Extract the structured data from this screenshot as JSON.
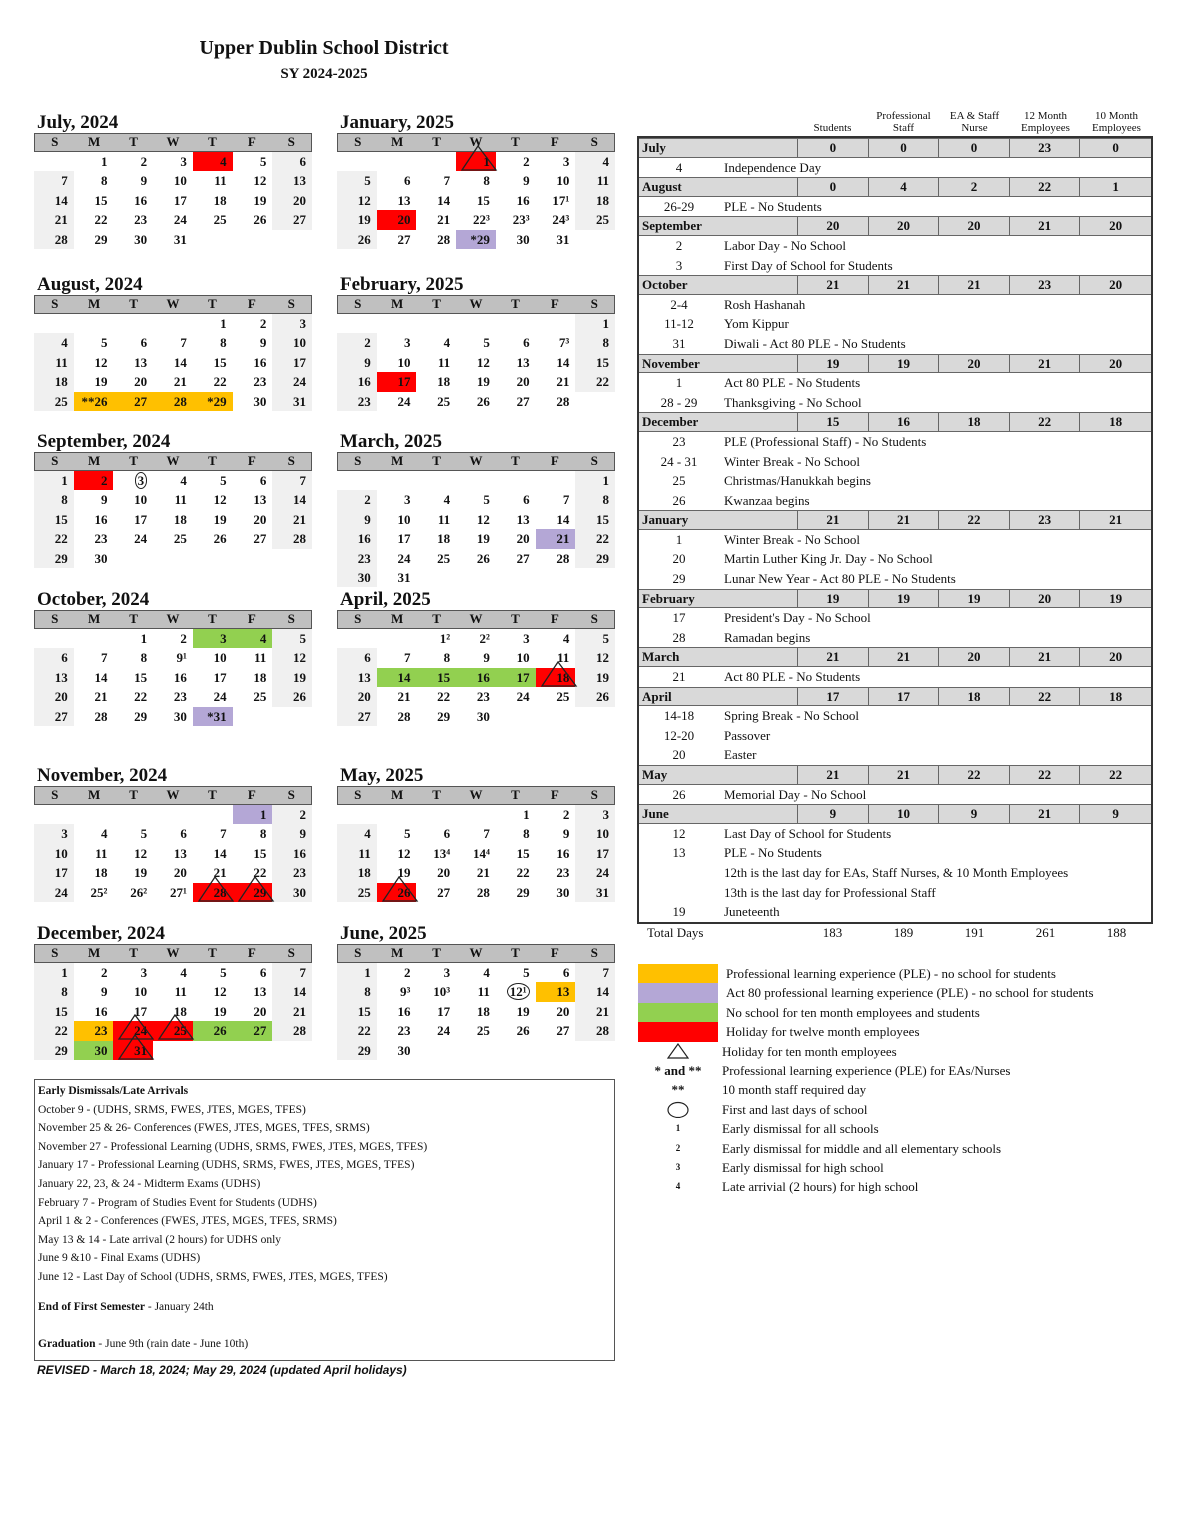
{
  "header": {
    "title": "Upper Dublin School District",
    "subtitle": "SY 2024-2025"
  },
  "dow": [
    "S",
    "M",
    "T",
    "W",
    "T",
    "F",
    "S"
  ],
  "colors": {
    "yellow": "#ffc000",
    "purple": "#b4a7d6",
    "green": "#92d050",
    "red": "#ff0000"
  },
  "months": [
    {
      "title": "July, 2024",
      "weeks": [
        [
          "",
          "1",
          "2",
          "3",
          "4",
          "5",
          "6"
        ],
        [
          "7",
          "8",
          "9",
          "10",
          "11",
          "12",
          "13"
        ],
        [
          "14",
          "15",
          "16",
          "17",
          "18",
          "19",
          "20"
        ],
        [
          "21",
          "22",
          "23",
          "24",
          "25",
          "26",
          "27"
        ],
        [
          "28",
          "29",
          "30",
          "31",
          "",
          "",
          ""
        ]
      ],
      "fill": {
        "4": "red"
      },
      "triangles": [],
      "circles": []
    },
    {
      "title": "August, 2024",
      "weeks": [
        [
          "",
          "",
          "",
          "",
          "1",
          "2",
          "3"
        ],
        [
          "4",
          "5",
          "6",
          "7",
          "8",
          "9",
          "10"
        ],
        [
          "11",
          "12",
          "13",
          "14",
          "15",
          "16",
          "17"
        ],
        [
          "18",
          "19",
          "20",
          "21",
          "22",
          "23",
          "24"
        ],
        [
          "25",
          "**26",
          "27",
          "28",
          "*29",
          "30",
          "31"
        ]
      ],
      "fill": {
        "**26": "yellow",
        "27": "yellow",
        "28": "yellow",
        "*29": "yellow"
      },
      "triangles": [],
      "circles": []
    },
    {
      "title": "September, 2024",
      "weeks": [
        [
          "1",
          "2",
          "3",
          "4",
          "5",
          "6",
          "7"
        ],
        [
          "8",
          "9",
          "10",
          "11",
          "12",
          "13",
          "14"
        ],
        [
          "15",
          "16",
          "17",
          "18",
          "19",
          "20",
          "21"
        ],
        [
          "22",
          "23",
          "24",
          "25",
          "26",
          "27",
          "28"
        ],
        [
          "29",
          "30",
          "",
          "",
          "",
          "",
          ""
        ]
      ],
      "fill": {
        "2": "red"
      },
      "triangles": [],
      "circles": [
        "3"
      ]
    },
    {
      "title": "October, 2024",
      "weeks": [
        [
          "",
          "",
          "1",
          "2",
          "3",
          "4",
          "5"
        ],
        [
          "6",
          "7",
          "8",
          "9¹",
          "10",
          "11",
          "12"
        ],
        [
          "13",
          "14",
          "15",
          "16",
          "17",
          "18",
          "19"
        ],
        [
          "20",
          "21",
          "22",
          "23",
          "24",
          "25",
          "26"
        ],
        [
          "27",
          "28",
          "29",
          "30",
          "*31",
          "",
          ""
        ]
      ],
      "fill": {
        "3": "green",
        "4": "green",
        "*31": "purple"
      },
      "triangles": [],
      "circles": []
    },
    {
      "title": "November, 2024",
      "weeks": [
        [
          "",
          "",
          "",
          "",
          "",
          "1",
          "2"
        ],
        [
          "3",
          "4",
          "5",
          "6",
          "7",
          "8",
          "9"
        ],
        [
          "10",
          "11",
          "12",
          "13",
          "14",
          "15",
          "16"
        ],
        [
          "17",
          "18",
          "19",
          "20",
          "21",
          "22",
          "23"
        ],
        [
          "24",
          "25²",
          "26²",
          "27¹",
          "28",
          "29",
          "30"
        ]
      ],
      "fill": {
        "1": "purple",
        "28": "red",
        "29": "red"
      },
      "triangles": [
        "28",
        "29"
      ],
      "circles": []
    },
    {
      "title": "December, 2024",
      "weeks": [
        [
          "1",
          "2",
          "3",
          "4",
          "5",
          "6",
          "7"
        ],
        [
          "8",
          "9",
          "10",
          "11",
          "12",
          "13",
          "14"
        ],
        [
          "15",
          "16",
          "17",
          "18",
          "19",
          "20",
          "21"
        ],
        [
          "22",
          "23",
          "24",
          "25",
          "26",
          "27",
          "28"
        ],
        [
          "29",
          "30",
          "31",
          "",
          "",
          "",
          ""
        ]
      ],
      "fill": {
        "23": "yellow",
        "24": "red",
        "25": "red",
        "31": "red",
        "26": "green",
        "27": "green",
        "30": "green"
      },
      "triangles": [
        "24",
        "25",
        "31"
      ],
      "circles": []
    },
    {
      "title": "January, 2025",
      "weeks": [
        [
          "",
          "",
          "",
          "1",
          "2",
          "3",
          "4"
        ],
        [
          "5",
          "6",
          "7",
          "8",
          "9",
          "10",
          "11"
        ],
        [
          "12",
          "13",
          "14",
          "15",
          "16",
          "17¹",
          "18"
        ],
        [
          "19",
          "20",
          "21",
          "22³",
          "23³",
          "24³",
          "25"
        ],
        [
          "26",
          "27",
          "28",
          "*29",
          "30",
          "31",
          ""
        ]
      ],
      "fill": {
        "1": "red",
        "20": "red",
        "*29": "purple"
      },
      "triangles": [
        "1"
      ],
      "circles": []
    },
    {
      "title": "February, 2025",
      "weeks": [
        [
          "",
          "",
          "",
          "",
          "",
          "",
          "1"
        ],
        [
          "2",
          "3",
          "4",
          "5",
          "6",
          "7³",
          "8"
        ],
        [
          "9",
          "10",
          "11",
          "12",
          "13",
          "14",
          "15"
        ],
        [
          "16",
          "17",
          "18",
          "19",
          "20",
          "21",
          "22"
        ],
        [
          "23",
          "24",
          "25",
          "26",
          "27",
          "28",
          ""
        ]
      ],
      "fill": {
        "17": "red"
      },
      "triangles": [],
      "circles": []
    },
    {
      "title": "March, 2025",
      "weeks": [
        [
          "",
          "",
          "",
          "",
          "",
          "",
          "1"
        ],
        [
          "2",
          "3",
          "4",
          "5",
          "6",
          "7",
          "8"
        ],
        [
          "9",
          "10",
          "11",
          "12",
          "13",
          "14",
          "15"
        ],
        [
          "16",
          "17",
          "18",
          "19",
          "20",
          "21",
          "22"
        ],
        [
          "23",
          "24",
          "25",
          "26",
          "27",
          "28",
          "29"
        ],
        [
          "30",
          "31",
          "",
          "",
          "",
          "",
          ""
        ]
      ],
      "fill": {
        "21": "purple"
      },
      "triangles": [],
      "circles": []
    },
    {
      "title": "April, 2025",
      "weeks": [
        [
          "",
          "",
          "1²",
          "2²",
          "3",
          "4",
          "5"
        ],
        [
          "6",
          "7",
          "8",
          "9",
          "10",
          "11",
          "12"
        ],
        [
          "13",
          "14",
          "15",
          "16",
          "17",
          "18",
          "19"
        ],
        [
          "20",
          "21",
          "22",
          "23",
          "24",
          "25",
          "26"
        ],
        [
          "27",
          "28",
          "29",
          "30",
          "",
          "",
          ""
        ]
      ],
      "fill": {
        "14": "green",
        "15": "green",
        "16": "green",
        "17": "green",
        "18": "red"
      },
      "triangles": [
        "18"
      ],
      "circles": []
    },
    {
      "title": "May, 2025",
      "weeks": [
        [
          "",
          "",
          "",
          "",
          "1",
          "2",
          "3"
        ],
        [
          "4",
          "5",
          "6",
          "7",
          "8",
          "9",
          "10"
        ],
        [
          "11",
          "12",
          "13⁴",
          "14⁴",
          "15",
          "16",
          "17"
        ],
        [
          "18",
          "19",
          "20",
          "21",
          "22",
          "23",
          "24"
        ],
        [
          "25",
          "26",
          "27",
          "28",
          "29",
          "30",
          "31"
        ]
      ],
      "fill": {
        "26": "red"
      },
      "triangles": [
        "26"
      ],
      "circles": []
    },
    {
      "title": "June, 2025",
      "weeks": [
        [
          "1",
          "2",
          "3",
          "4",
          "5",
          "6",
          "7"
        ],
        [
          "8",
          "9³",
          "10³",
          "11",
          "12¹",
          "13",
          "14"
        ],
        [
          "15",
          "16",
          "17",
          "18",
          "19",
          "20",
          "21"
        ],
        [
          "22",
          "23",
          "24",
          "25",
          "26",
          "27",
          "28"
        ],
        [
          "29",
          "30",
          "",
          "",
          "",
          "",
          ""
        ]
      ],
      "fill": {
        "13": "yellow"
      },
      "triangles": [],
      "circles": [
        "12¹"
      ]
    }
  ],
  "summary": {
    "columns": [
      "Students",
      "Professional Staff",
      "EA & Staff Nurse",
      "12 Month Employees",
      "10 Month Employees"
    ],
    "months": [
      {
        "name": "July",
        "values": [
          0,
          0,
          0,
          23,
          0
        ],
        "events": [
          [
            "4",
            "Independence Day"
          ]
        ]
      },
      {
        "name": "August",
        "values": [
          0,
          4,
          2,
          22,
          1
        ],
        "events": [
          [
            "26-29",
            "PLE - No Students"
          ]
        ]
      },
      {
        "name": "September",
        "values": [
          20,
          20,
          20,
          21,
          20
        ],
        "events": [
          [
            "2",
            "Labor Day - No School"
          ],
          [
            "3",
            "First Day of School for Students"
          ]
        ]
      },
      {
        "name": "October",
        "values": [
          21,
          21,
          21,
          23,
          20
        ],
        "events": [
          [
            "2-4",
            "Rosh Hashanah"
          ],
          [
            "11-12",
            "Yom Kippur"
          ],
          [
            "31",
            "Diwali - Act 80 PLE - No Students"
          ]
        ]
      },
      {
        "name": "November",
        "values": [
          19,
          19,
          20,
          21,
          20
        ],
        "events": [
          [
            "1",
            "Act 80 PLE - No Students"
          ],
          [
            "28 - 29",
            "Thanksgiving - No School"
          ]
        ]
      },
      {
        "name": "December",
        "values": [
          15,
          16,
          18,
          22,
          18
        ],
        "events": [
          [
            "23",
            "PLE (Professional Staff) - No Students"
          ],
          [
            "24 - 31",
            "Winter Break - No School"
          ],
          [
            "25",
            "Christmas/Hanukkah begins"
          ],
          [
            "26",
            "Kwanzaa begins"
          ]
        ]
      },
      {
        "name": "January",
        "values": [
          21,
          21,
          22,
          23,
          21
        ],
        "events": [
          [
            "1",
            "Winter Break - No School"
          ],
          [
            "20",
            "Martin Luther King Jr. Day - No School"
          ],
          [
            "29",
            "Lunar New Year - Act 80 PLE - No Students"
          ]
        ]
      },
      {
        "name": "February",
        "values": [
          19,
          19,
          19,
          20,
          19
        ],
        "events": [
          [
            "17",
            "President's Day - No School"
          ],
          [
            "28",
            "Ramadan begins"
          ]
        ]
      },
      {
        "name": "March",
        "values": [
          21,
          21,
          20,
          21,
          20
        ],
        "events": [
          [
            "21",
            "Act 80 PLE - No Students"
          ]
        ]
      },
      {
        "name": "April",
        "values": [
          17,
          17,
          18,
          22,
          18
        ],
        "events": [
          [
            "14-18",
            "Spring Break - No School"
          ],
          [
            "12-20",
            "Passover"
          ],
          [
            "20",
            "Easter"
          ]
        ]
      },
      {
        "name": "May",
        "values": [
          21,
          21,
          22,
          22,
          22
        ],
        "events": [
          [
            "26",
            "Memorial Day - No School"
          ]
        ]
      },
      {
        "name": "June",
        "values": [
          9,
          10,
          9,
          21,
          9
        ],
        "events": [
          [
            "12",
            "Last Day of School for Students"
          ],
          [
            "13",
            "PLE - No Students"
          ],
          [
            "",
            "12th is the last day for EAs, Staff Nurses, & 10 Month Employees"
          ],
          [
            "",
            "13th is the last day for Professional Staff"
          ],
          [
            "19",
            "Juneteenth"
          ]
        ]
      }
    ],
    "totals_label": "Total Days",
    "totals": [
      183,
      189,
      191,
      261,
      188
    ]
  },
  "legend": [
    {
      "symbol": "swatch",
      "color": "yellow",
      "text": "Professional learning experience (PLE) - no school for students"
    },
    {
      "symbol": "swatch",
      "color": "purple",
      "text": "Act 80 professional learning experience (PLE) - no school for students"
    },
    {
      "symbol": "swatch",
      "color": "green",
      "text": "No school for ten month employees and students"
    },
    {
      "symbol": "swatch",
      "color": "red",
      "text": "Holiday for twelve month employees"
    },
    {
      "symbol": "triangle",
      "text": "Holiday for ten month employees"
    },
    {
      "symbol": "text",
      "label": "* and **",
      "text": "Professional learning experience (PLE) for EAs/Nurses"
    },
    {
      "symbol": "text",
      "label": "**",
      "text": "10 month staff required day"
    },
    {
      "symbol": "circle",
      "text": "First and last days of school"
    },
    {
      "symbol": "text",
      "label": "1",
      "text": "Early dismissal for all schools"
    },
    {
      "symbol": "text",
      "label": "2",
      "text": "Early dismissal for middle and all elementary schools"
    },
    {
      "symbol": "text",
      "label": "3",
      "text": "Early dismissal for high school"
    },
    {
      "symbol": "text",
      "label": "4",
      "text": "Late arrivial (2 hours) for high school"
    }
  ],
  "notes": {
    "heading": "Early Dismissals/Late Arrivals",
    "lines": [
      "October 9 - (UDHS, SRMS, FWES, JTES, MGES, TFES)",
      "November 25 & 26- Conferences (FWES, JTES, MGES, TFES, SRMS)",
      "November 27 - Professional Learning (UDHS, SRMS, FWES, JTES, MGES, TFES)",
      "January 17  - Professional Learning (UDHS, SRMS, FWES, JTES, MGES, TFES)",
      "January 22, 23, & 24 - Midterm Exams (UDHS)",
      "February 7 - Program of Studies Event for Students (UDHS)",
      "April 1 & 2 - Conferences (FWES, JTES, MGES, TFES, SRMS)",
      "May 13 & 14 - Late arrival (2 hours) for UDHS only",
      "June 9 &10 - Final Exams (UDHS)",
      "June 12 - Last Day of School (UDHS, SRMS, FWES, JTES, MGES, TFES)"
    ],
    "semester_label": "End of First Semester",
    "semester_value": "-  January 24th",
    "graduation_label": "Graduation",
    "graduation_value": "-  June 9th (rain date - June 10th)"
  },
  "revised": "REVISED - March 18, 2024; May 29, 2024 (updated April holidays)"
}
